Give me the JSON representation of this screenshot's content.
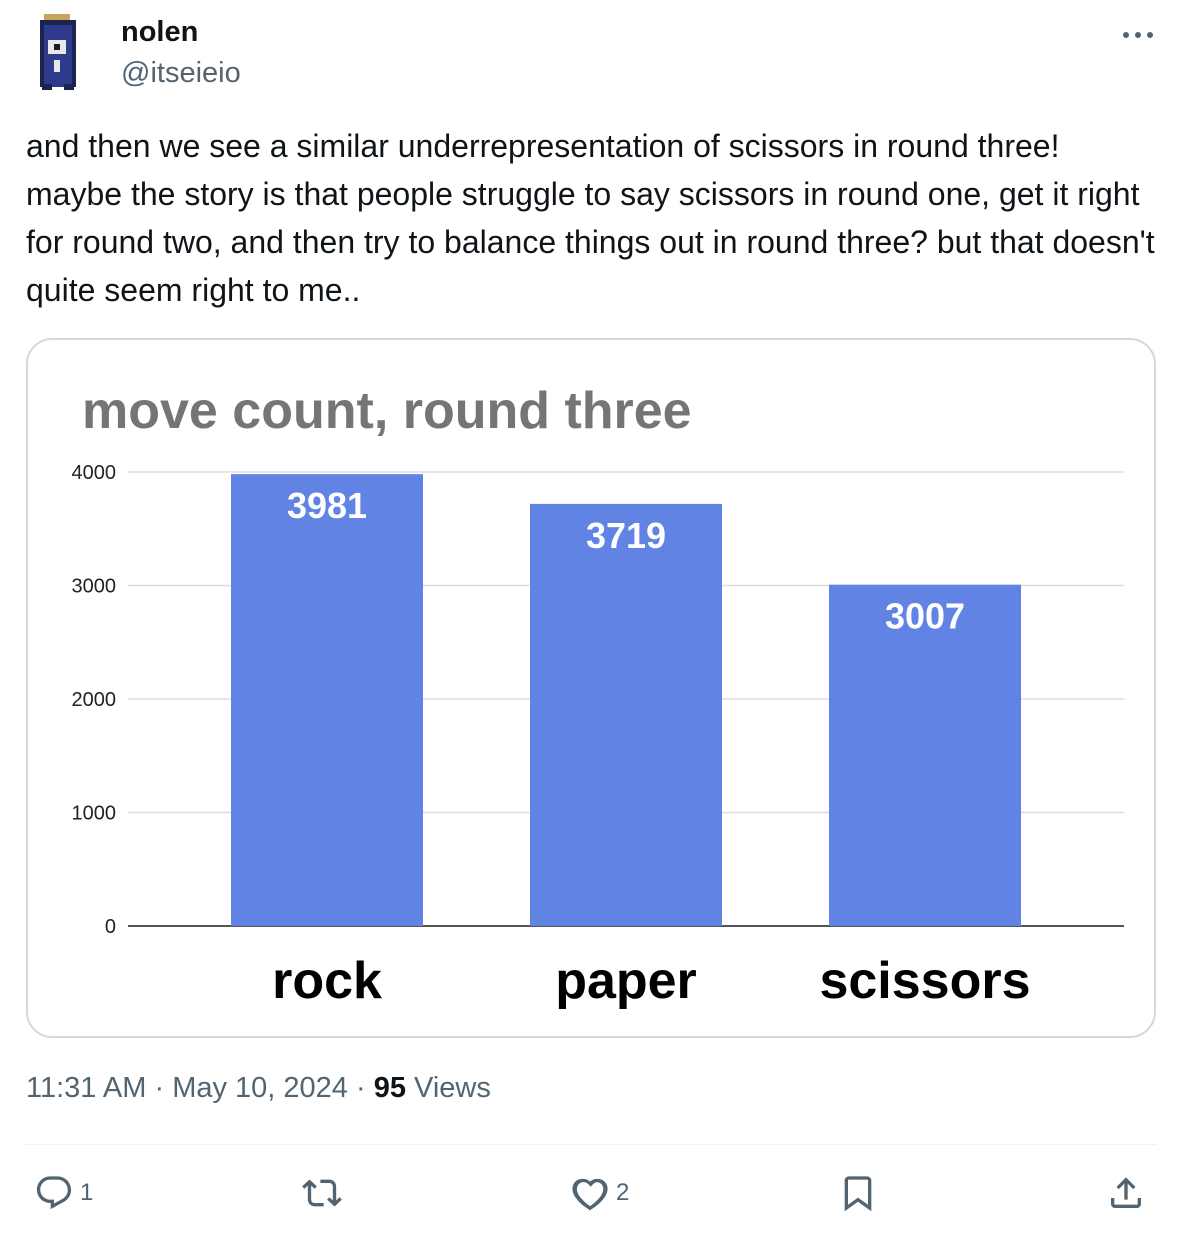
{
  "author": {
    "display_name": "nolen",
    "handle": "@itseieio",
    "avatar_icon": "pixel-character-avatar-icon"
  },
  "tweet": {
    "text": "and then we see a similar underrepresentation of scissors in round three! maybe the story is that people struggle to say scissors in round one, get it right for round two, and then try to balance things out in round three? but that doesn't quite seem right to me.."
  },
  "meta": {
    "time": "11:31 AM",
    "date": "May 10, 2024",
    "separator": "·",
    "views_count": "95",
    "views_label": "Views"
  },
  "actions": {
    "reply_count": "1",
    "retweet_count": "",
    "like_count": "2"
  },
  "colors": {
    "bar": "#6183e4",
    "title_text": "#757575",
    "axis_label": "#000000"
  },
  "chart_data": {
    "type": "bar",
    "title": "move count, round three",
    "categories": [
      "rock",
      "paper",
      "scissors"
    ],
    "values": [
      3981,
      3719,
      3007
    ],
    "data_labels": [
      "3981",
      "3719",
      "3007"
    ],
    "ylim": [
      0,
      4000
    ],
    "yticks": [
      0,
      1000,
      2000,
      3000,
      4000
    ],
    "xlabel": "",
    "ylabel": "",
    "grid": true,
    "legend": "none"
  }
}
